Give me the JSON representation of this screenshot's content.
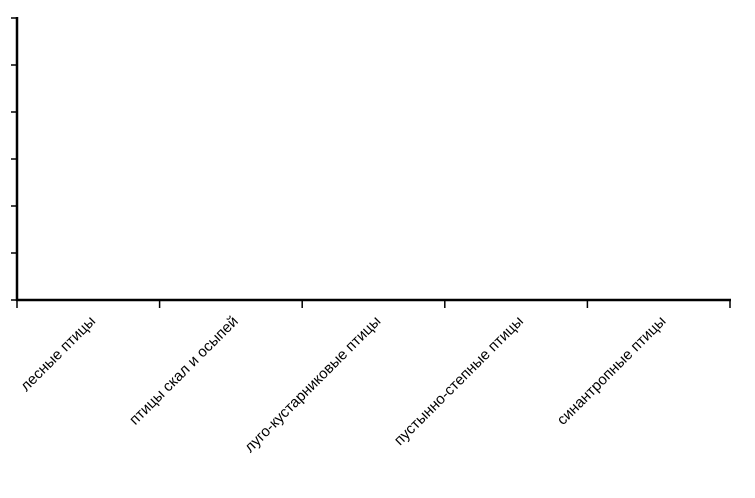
{
  "chart_data": {
    "type": "bar",
    "categories": [
      "лесные птицы",
      "птицы скал и осыпей",
      "луго-кустарниковые птицы",
      "пустынно-степные птицы",
      "синантропные птицы"
    ]
  }
}
